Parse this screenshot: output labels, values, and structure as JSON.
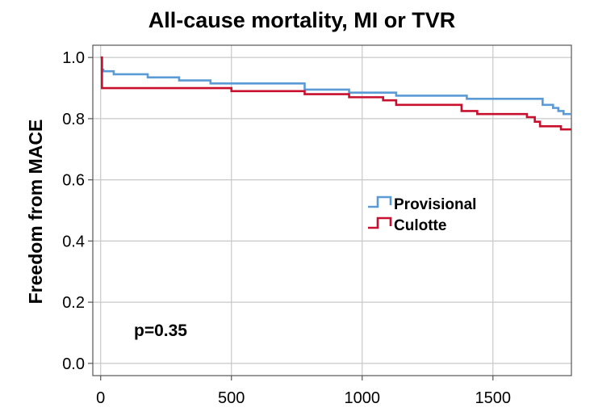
{
  "chart_data": {
    "type": "line",
    "step": true,
    "title": "All-cause mortality, MI or TVR",
    "xlabel": "",
    "ylabel": "Freedom from MACE",
    "xlim": [
      -30,
      1800
    ],
    "ylim": [
      -0.04,
      1.04
    ],
    "xticks": [
      0,
      500,
      1000,
      1500
    ],
    "yticks": [
      0.0,
      0.2,
      0.4,
      0.6,
      0.8,
      1.0
    ],
    "ytick_labels": [
      "0.0",
      "0.2",
      "0.4",
      "0.6",
      "0.8",
      "1.0"
    ],
    "grid": true,
    "legend_position": "center-right",
    "annotation": "p=0.35",
    "series": [
      {
        "name": "Provisional",
        "color": "#5b9bd5",
        "x": [
          0,
          5,
          10,
          50,
          180,
          300,
          420,
          780,
          950,
          1000,
          1130,
          1250,
          1400,
          1690,
          1730,
          1750,
          1770,
          1800
        ],
        "y": [
          1.0,
          0.96,
          0.955,
          0.945,
          0.935,
          0.925,
          0.915,
          0.895,
          0.885,
          0.885,
          0.875,
          0.875,
          0.865,
          0.845,
          0.835,
          0.825,
          0.815,
          0.815
        ]
      },
      {
        "name": "Culotte",
        "color": "#c8102e",
        "x": [
          0,
          5,
          500,
          780,
          950,
          1000,
          1080,
          1130,
          1230,
          1380,
          1440,
          1630,
          1660,
          1680,
          1760,
          1800
        ],
        "y": [
          1.0,
          0.9,
          0.89,
          0.88,
          0.87,
          0.87,
          0.86,
          0.845,
          0.845,
          0.825,
          0.815,
          0.805,
          0.79,
          0.775,
          0.765,
          0.765
        ]
      }
    ]
  }
}
